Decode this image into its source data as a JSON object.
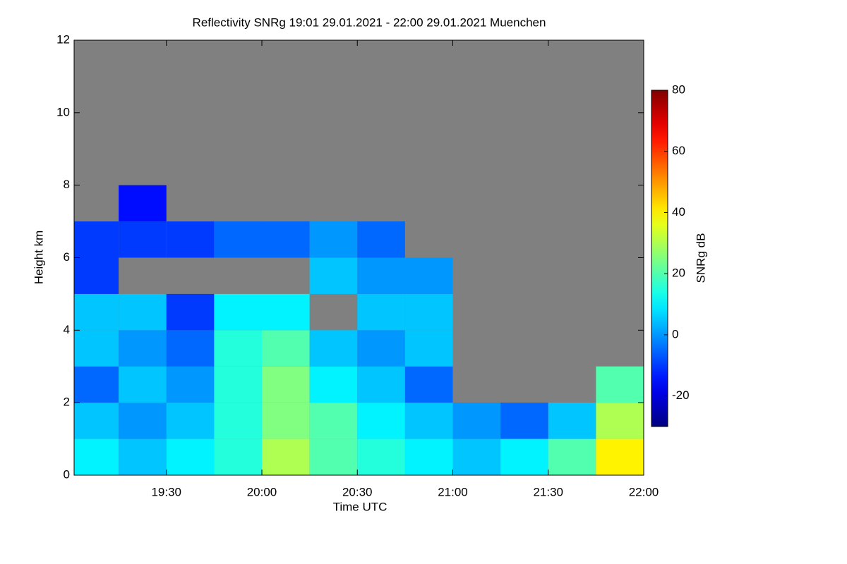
{
  "chart_data": {
    "type": "heatmap",
    "title": "Reflectivity SNRg   19:01 29.01.2021 - 22:00 29.01.2021 Muenchen",
    "x_label": "Time UTC",
    "y_label": "Height km",
    "colorbar_label": "SNRg dB",
    "background": "#808080",
    "xlim": [
      19.0167,
      22.0
    ],
    "xticks": [
      {
        "value": 19.5,
        "label": "19:30"
      },
      {
        "value": 20.0,
        "label": "20:00"
      },
      {
        "value": 20.5,
        "label": "20:30"
      },
      {
        "value": 21.0,
        "label": "21:00"
      },
      {
        "value": 21.5,
        "label": "21:30"
      },
      {
        "value": 22.0,
        "label": "22:00"
      }
    ],
    "ylim": [
      0,
      12
    ],
    "yticks": [
      0,
      2,
      4,
      6,
      8,
      10,
      12
    ],
    "clim": [
      -30,
      80
    ],
    "cticks": [
      -20,
      0,
      20,
      40,
      60,
      80
    ],
    "x_edges": [
      19.0167,
      19.25,
      19.5,
      19.75,
      20.0,
      20.25,
      20.5,
      20.75,
      21.0,
      21.25,
      21.5,
      21.75,
      22.0
    ],
    "y_edges": [
      0,
      1,
      2,
      3,
      4,
      5,
      6,
      7,
      8,
      9,
      10,
      11,
      12
    ],
    "z": [
      [
        10,
        5,
        10,
        15,
        30,
        20,
        15,
        10,
        5,
        10,
        20,
        40
      ],
      [
        5,
        0,
        5,
        15,
        25,
        20,
        10,
        5,
        0,
        -5,
        5,
        30
      ],
      [
        -5,
        5,
        0,
        15,
        25,
        10,
        5,
        -5,
        null,
        null,
        null,
        20
      ],
      [
        5,
        0,
        -5,
        15,
        20,
        5,
        0,
        5,
        null,
        null,
        null,
        null
      ],
      [
        5,
        5,
        -10,
        10,
        10,
        null,
        5,
        5,
        null,
        null,
        null,
        null
      ],
      [
        -10,
        null,
        null,
        null,
        null,
        5,
        0,
        0,
        null,
        null,
        null,
        null
      ],
      [
        -10,
        -10,
        -10,
        -5,
        -5,
        0,
        -5,
        null,
        null,
        null,
        null,
        null
      ],
      [
        null,
        -15,
        null,
        null,
        null,
        null,
        null,
        null,
        null,
        null,
        null,
        null
      ],
      [
        null,
        null,
        null,
        null,
        null,
        null,
        null,
        null,
        null,
        null,
        null,
        null
      ],
      [
        null,
        null,
        null,
        null,
        null,
        null,
        null,
        null,
        null,
        null,
        null,
        null
      ],
      [
        null,
        null,
        null,
        null,
        null,
        null,
        null,
        null,
        null,
        null,
        null,
        null
      ],
      [
        null,
        null,
        null,
        null,
        null,
        null,
        null,
        null,
        null,
        null,
        null,
        null
      ]
    ]
  }
}
